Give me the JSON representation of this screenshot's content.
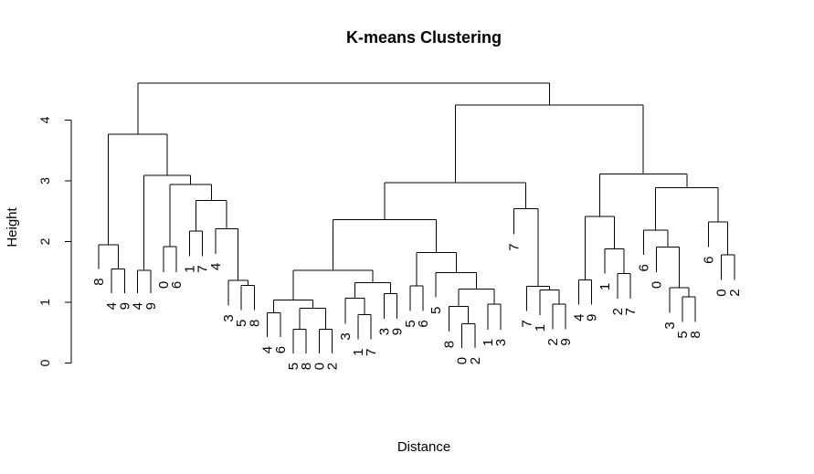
{
  "chart_data": {
    "type": "dendrogram",
    "title": "K-means Clustering",
    "xlabel": "Distance",
    "ylabel": "Height",
    "ylim": [
      0,
      4.6
    ],
    "y_ticks": [
      0,
      1,
      2,
      3,
      4
    ],
    "grid": false,
    "legend": "none",
    "tree": {
      "h": 4.61,
      "children": [
        {
          "h": 3.77,
          "children": [
            {
              "h": 1.95,
              "children": [
                {
                  "label": "8",
                  "h": 1.55
                },
                {
                  "h": 1.55,
                  "children": [
                    {
                      "label": "4",
                      "h": 1.15
                    },
                    {
                      "label": "9",
                      "h": 1.15
                    }
                  ]
                }
              ]
            },
            {
              "h": 3.09,
              "children": [
                {
                  "h": 1.53,
                  "children": [
                    {
                      "label": "4",
                      "h": 1.15
                    },
                    {
                      "label": "9",
                      "h": 1.15
                    }
                  ]
                },
                {
                  "h": 2.94,
                  "children": [
                    {
                      "h": 1.92,
                      "children": [
                        {
                          "label": "0",
                          "h": 1.5
                        },
                        {
                          "label": "6",
                          "h": 1.5
                        }
                      ]
                    },
                    {
                      "h": 2.68,
                      "children": [
                        {
                          "h": 2.17,
                          "children": [
                            {
                              "label": "1",
                              "h": 1.76
                            },
                            {
                              "label": "7",
                              "h": 1.76
                            }
                          ]
                        },
                        {
                          "h": 2.21,
                          "children": [
                            {
                              "label": "4",
                              "h": 1.8
                            },
                            {
                              "h": 1.36,
                              "children": [
                                {
                                  "label": "3",
                                  "h": 0.95
                                },
                                {
                                  "h": 1.28,
                                  "children": [
                                    {
                                      "label": "5",
                                      "h": 0.87
                                    },
                                    {
                                      "label": "8",
                                      "h": 0.87
                                    }
                                  ]
                                }
                              ]
                            }
                          ]
                        }
                      ]
                    }
                  ]
                }
              ]
            }
          ]
        },
        {
          "h": 4.25,
          "children": [
            {
              "h": 2.97,
              "children": [
                {
                  "h": 2.36,
                  "children": [
                    {
                      "h": 1.53,
                      "children": [
                        {
                          "h": 1.04,
                          "children": [
                            {
                              "h": 0.83,
                              "children": [
                                {
                                  "label": "4",
                                  "h": 0.43
                                },
                                {
                                  "label": "6",
                                  "h": 0.43
                                }
                              ]
                            },
                            {
                              "h": 0.9,
                              "children": [
                                {
                                  "h": 0.56,
                                  "children": [
                                    {
                                      "label": "5",
                                      "h": 0.16
                                    },
                                    {
                                      "label": "8",
                                      "h": 0.16
                                    }
                                  ]
                                },
                                {
                                  "h": 0.56,
                                  "children": [
                                    {
                                      "label": "0",
                                      "h": 0.16
                                    },
                                    {
                                      "label": "2",
                                      "h": 0.16
                                    }
                                  ]
                                }
                              ]
                            }
                          ]
                        },
                        {
                          "h": 1.32,
                          "children": [
                            {
                              "h": 1.07,
                              "children": [
                                {
                                  "label": "3",
                                  "h": 0.65
                                },
                                {
                                  "h": 0.8,
                                  "children": [
                                    {
                                      "label": "1",
                                      "h": 0.39
                                    },
                                    {
                                      "label": "7",
                                      "h": 0.39
                                    }
                                  ]
                                }
                              ]
                            },
                            {
                              "h": 1.14,
                              "children": [
                                {
                                  "label": "3",
                                  "h": 0.73
                                },
                                {
                                  "label": "9",
                                  "h": 0.73
                                }
                              ]
                            }
                          ]
                        }
                      ]
                    },
                    {
                      "h": 1.82,
                      "children": [
                        {
                          "h": 1.27,
                          "children": [
                            {
                              "label": "5",
                              "h": 0.86
                            },
                            {
                              "label": "6",
                              "h": 0.86
                            }
                          ]
                        },
                        {
                          "h": 1.49,
                          "children": [
                            {
                              "label": "5",
                              "h": 1.08
                            },
                            {
                              "h": 1.22,
                              "children": [
                                {
                                  "h": 0.93,
                                  "children": [
                                    {
                                      "label": "8",
                                      "h": 0.52
                                    },
                                    {
                                      "h": 0.65,
                                      "children": [
                                        {
                                          "label": "0",
                                          "h": 0.25
                                        },
                                        {
                                          "label": "2",
                                          "h": 0.25
                                        }
                                      ]
                                    }
                                  ]
                                },
                                {
                                  "h": 0.97,
                                  "children": [
                                    {
                                      "label": "1",
                                      "h": 0.55
                                    },
                                    {
                                      "label": "3",
                                      "h": 0.55
                                    }
                                  ]
                                }
                              ]
                            }
                          ]
                        }
                      ]
                    }
                  ]
                },
                {
                  "h": 2.54,
                  "children": [
                    {
                      "label": "7",
                      "h": 2.12
                    },
                    {
                      "h": 1.26,
                      "children": [
                        {
                          "label": "7",
                          "h": 0.86
                        },
                        {
                          "h": 1.2,
                          "children": [
                            {
                              "label": "1",
                              "h": 0.79
                            },
                            {
                              "h": 0.97,
                              "children": [
                                {
                                  "label": "2",
                                  "h": 0.56
                                },
                                {
                                  "label": "9",
                                  "h": 0.56
                                }
                              ]
                            }
                          ]
                        }
                      ]
                    }
                  ]
                }
              ]
            },
            {
              "h": 3.11,
              "children": [
                {
                  "h": 2.41,
                  "children": [
                    {
                      "h": 1.37,
                      "children": [
                        {
                          "label": "4",
                          "h": 0.96
                        },
                        {
                          "label": "9",
                          "h": 0.96
                        }
                      ]
                    },
                    {
                      "h": 1.88,
                      "children": [
                        {
                          "label": "1",
                          "h": 1.47
                        },
                        {
                          "h": 1.47,
                          "children": [
                            {
                              "label": "2",
                              "h": 1.06
                            },
                            {
                              "label": "7",
                              "h": 1.06
                            }
                          ]
                        }
                      ]
                    }
                  ]
                },
                {
                  "h": 2.89,
                  "children": [
                    {
                      "h": 2.19,
                      "children": [
                        {
                          "label": "6",
                          "h": 1.78
                        },
                        {
                          "h": 1.91,
                          "children": [
                            {
                              "label": "0",
                              "h": 1.5
                            },
                            {
                              "h": 1.24,
                              "children": [
                                {
                                  "label": "3",
                                  "h": 0.83
                                },
                                {
                                  "h": 1.09,
                                  "children": [
                                    {
                                      "label": "5",
                                      "h": 0.68
                                    },
                                    {
                                      "label": "8",
                                      "h": 0.68
                                    }
                                  ]
                                }
                              ]
                            }
                          ]
                        }
                      ]
                    },
                    {
                      "h": 2.32,
                      "children": [
                        {
                          "label": "6",
                          "h": 1.91
                        },
                        {
                          "h": 1.78,
                          "children": [
                            {
                              "label": "0",
                              "h": 1.37
                            },
                            {
                              "label": "2",
                              "h": 1.37
                            }
                          ]
                        }
                      ]
                    }
                  ]
                }
              ]
            }
          ]
        }
      ]
    }
  }
}
